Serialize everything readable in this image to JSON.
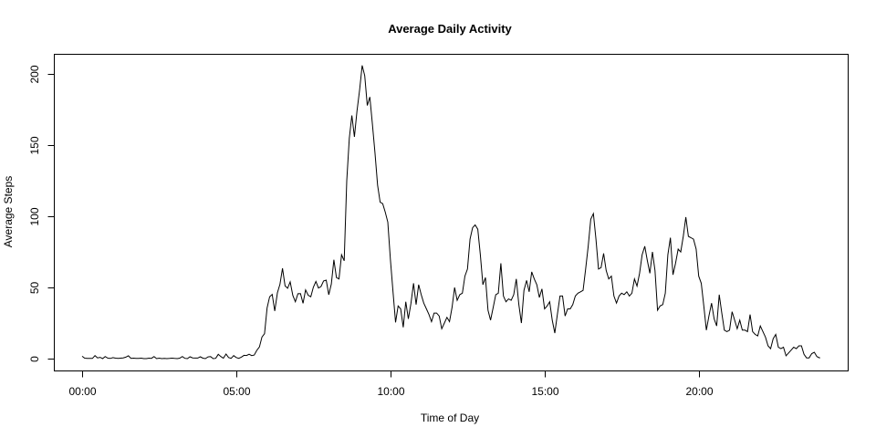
{
  "chart_data": {
    "type": "line",
    "title": "Average Daily Activity",
    "xlabel": "Time of Day",
    "ylabel": "Average Steps",
    "x_unit": "minutes since midnight",
    "xlim": [
      0,
      1435
    ],
    "ylim": [
      0,
      206
    ],
    "x_ticks": [
      {
        "value": 0,
        "label": "00:00"
      },
      {
        "value": 300,
        "label": "05:00"
      },
      {
        "value": 600,
        "label": "10:00"
      },
      {
        "value": 900,
        "label": "15:00"
      },
      {
        "value": 1200,
        "label": "20:00"
      }
    ],
    "y_ticks": [
      {
        "value": 0,
        "label": "0"
      },
      {
        "value": 50,
        "label": "50"
      },
      {
        "value": 100,
        "label": "100"
      },
      {
        "value": 150,
        "label": "150"
      },
      {
        "value": 200,
        "label": "200"
      }
    ],
    "grid": false,
    "series": [
      {
        "color": "#000000",
        "points": [
          [
            0,
            1.7
          ],
          [
            5,
            0.3
          ],
          [
            10,
            0.1
          ],
          [
            15,
            0.2
          ],
          [
            20,
            0.1
          ],
          [
            25,
            2.1
          ],
          [
            30,
            0.5
          ],
          [
            35,
            0.9
          ],
          [
            40,
            0.0
          ],
          [
            45,
            1.5
          ],
          [
            50,
            0.3
          ],
          [
            55,
            0.1
          ],
          [
            60,
            0.7
          ],
          [
            65,
            0.3
          ],
          [
            70,
            0.1
          ],
          [
            75,
            0.3
          ],
          [
            80,
            0.5
          ],
          [
            85,
            1.0
          ],
          [
            90,
            2.0
          ],
          [
            95,
            0.2
          ],
          [
            100,
            0.3
          ],
          [
            105,
            0.1
          ],
          [
            110,
            0.1
          ],
          [
            115,
            0.3
          ],
          [
            120,
            0.0
          ],
          [
            125,
            0.0
          ],
          [
            130,
            0.3
          ],
          [
            135,
            0.2
          ],
          [
            140,
            1.5
          ],
          [
            145,
            0.0
          ],
          [
            150,
            0.3
          ],
          [
            155,
            0.0
          ],
          [
            160,
            0.1
          ],
          [
            165,
            0.0
          ],
          [
            170,
            0.1
          ],
          [
            175,
            0.3
          ],
          [
            180,
            0.1
          ],
          [
            185,
            0.0
          ],
          [
            190,
            0.3
          ],
          [
            195,
            1.5
          ],
          [
            200,
            0.2
          ],
          [
            205,
            0.0
          ],
          [
            210,
            1.3
          ],
          [
            215,
            0.5
          ],
          [
            220,
            0.4
          ],
          [
            225,
            0.4
          ],
          [
            230,
            1.3
          ],
          [
            235,
            0.3
          ],
          [
            240,
            0.0
          ],
          [
            245,
            1.2
          ],
          [
            250,
            1.4
          ],
          [
            255,
            0.0
          ],
          [
            260,
            0.2
          ],
          [
            265,
            3.0
          ],
          [
            270,
            1.5
          ],
          [
            275,
            0.3
          ],
          [
            280,
            3.2
          ],
          [
            285,
            0.8
          ],
          [
            290,
            0.2
          ],
          [
            295,
            2.1
          ],
          [
            300,
            0.8
          ],
          [
            305,
            0.2
          ],
          [
            310,
            1.1
          ],
          [
            315,
            2.3
          ],
          [
            320,
            2.2
          ],
          [
            325,
            3.1
          ],
          [
            330,
            2.1
          ],
          [
            335,
            2.5
          ],
          [
            340,
            5.8
          ],
          [
            345,
            8.2
          ],
          [
            350,
            15.2
          ],
          [
            355,
            17.5
          ],
          [
            360,
            35.6
          ],
          [
            365,
            43.5
          ],
          [
            370,
            45.2
          ],
          [
            375,
            33.5
          ],
          [
            380,
            46.3
          ],
          [
            385,
            52.3
          ],
          [
            390,
            63.5
          ],
          [
            395,
            51.2
          ],
          [
            400,
            49.5
          ],
          [
            405,
            54.0
          ],
          [
            410,
            44.5
          ],
          [
            415,
            40.0
          ],
          [
            420,
            45.6
          ],
          [
            425,
            45.7
          ],
          [
            430,
            38.9
          ],
          [
            435,
            48.3
          ],
          [
            440,
            44.6
          ],
          [
            445,
            43.5
          ],
          [
            450,
            50.2
          ],
          [
            455,
            54.3
          ],
          [
            460,
            49.7
          ],
          [
            465,
            50.7
          ],
          [
            470,
            54.6
          ],
          [
            475,
            55.2
          ],
          [
            480,
            44.9
          ],
          [
            485,
            52.4
          ],
          [
            490,
            69.5
          ],
          [
            495,
            57.0
          ],
          [
            500,
            56.0
          ],
          [
            505,
            73.0
          ],
          [
            510,
            68.8
          ],
          [
            515,
            125.0
          ],
          [
            520,
            155.0
          ],
          [
            525,
            171.0
          ],
          [
            530,
            156.0
          ],
          [
            535,
            174.0
          ],
          [
            540,
            189.0
          ],
          [
            545,
            206.2
          ],
          [
            550,
            199.0
          ],
          [
            555,
            178.0
          ],
          [
            560,
            184.0
          ],
          [
            565,
            165.0
          ],
          [
            570,
            145.0
          ],
          [
            575,
            122.0
          ],
          [
            580,
            110.0
          ],
          [
            585,
            109.0
          ],
          [
            590,
            103.0
          ],
          [
            595,
            96.0
          ],
          [
            600,
            70.0
          ],
          [
            605,
            47.0
          ],
          [
            610,
            25.5
          ],
          [
            615,
            37.0
          ],
          [
            620,
            35.0
          ],
          [
            625,
            22.0
          ],
          [
            630,
            40.0
          ],
          [
            635,
            28.0
          ],
          [
            640,
            39.0
          ],
          [
            645,
            53.0
          ],
          [
            650,
            38.0
          ],
          [
            655,
            52.0
          ],
          [
            660,
            45.0
          ],
          [
            665,
            39.0
          ],
          [
            670,
            35.0
          ],
          [
            675,
            31.0
          ],
          [
            680,
            26.0
          ],
          [
            685,
            32.0
          ],
          [
            690,
            32.0
          ],
          [
            695,
            30.0
          ],
          [
            700,
            21.0
          ],
          [
            705,
            25.0
          ],
          [
            710,
            29.0
          ],
          [
            715,
            26.0
          ],
          [
            720,
            36.0
          ],
          [
            725,
            50.0
          ],
          [
            730,
            41.0
          ],
          [
            735,
            45.0
          ],
          [
            740,
            46.0
          ],
          [
            745,
            58.0
          ],
          [
            750,
            63.0
          ],
          [
            755,
            84.0
          ],
          [
            760,
            92.0
          ],
          [
            765,
            94.0
          ],
          [
            770,
            91.0
          ],
          [
            775,
            73.0
          ],
          [
            780,
            52.0
          ],
          [
            785,
            57.0
          ],
          [
            790,
            34.0
          ],
          [
            795,
            27.0
          ],
          [
            800,
            36.0
          ],
          [
            805,
            45.0
          ],
          [
            810,
            46.0
          ],
          [
            815,
            67.0
          ],
          [
            820,
            44.0
          ],
          [
            825,
            40.0
          ],
          [
            830,
            42.0
          ],
          [
            835,
            41.0
          ],
          [
            840,
            45.0
          ],
          [
            845,
            56.0
          ],
          [
            850,
            38.0
          ],
          [
            855,
            25.0
          ],
          [
            860,
            48.0
          ],
          [
            865,
            55.0
          ],
          [
            870,
            47.0
          ],
          [
            875,
            61.0
          ],
          [
            880,
            56.0
          ],
          [
            885,
            52.0
          ],
          [
            890,
            43.0
          ],
          [
            895,
            49.0
          ],
          [
            900,
            35.0
          ],
          [
            905,
            37.0
          ],
          [
            910,
            40.0
          ],
          [
            915,
            27.0
          ],
          [
            920,
            18.0
          ],
          [
            925,
            31.0
          ],
          [
            930,
            44.0
          ],
          [
            935,
            44.0
          ],
          [
            940,
            30.0
          ],
          [
            945,
            35.0
          ],
          [
            950,
            35.0
          ],
          [
            955,
            38.0
          ],
          [
            960,
            44.0
          ],
          [
            965,
            46.0
          ],
          [
            970,
            47.0
          ],
          [
            975,
            48.0
          ],
          [
            980,
            63.0
          ],
          [
            985,
            79.0
          ],
          [
            990,
            98.0
          ],
          [
            995,
            102.0
          ],
          [
            1000,
            84.0
          ],
          [
            1005,
            63.0
          ],
          [
            1010,
            64.0
          ],
          [
            1015,
            74.0
          ],
          [
            1020,
            62.0
          ],
          [
            1025,
            56.0
          ],
          [
            1030,
            58.0
          ],
          [
            1035,
            44.0
          ],
          [
            1040,
            39.0
          ],
          [
            1045,
            44.0
          ],
          [
            1050,
            46.0
          ],
          [
            1055,
            45.0
          ],
          [
            1060,
            47.0
          ],
          [
            1065,
            44.0
          ],
          [
            1070,
            46.0
          ],
          [
            1075,
            56.0
          ],
          [
            1080,
            51.0
          ],
          [
            1085,
            60.0
          ],
          [
            1090,
            73.0
          ],
          [
            1095,
            79.0
          ],
          [
            1100,
            69.0
          ],
          [
            1105,
            60.0
          ],
          [
            1110,
            75.0
          ],
          [
            1115,
            62.0
          ],
          [
            1120,
            34.0
          ],
          [
            1125,
            37.0
          ],
          [
            1130,
            38.0
          ],
          [
            1135,
            46.0
          ],
          [
            1140,
            73.0
          ],
          [
            1145,
            85.0
          ],
          [
            1150,
            59.0
          ],
          [
            1155,
            67.0
          ],
          [
            1160,
            77.0
          ],
          [
            1165,
            75.0
          ],
          [
            1170,
            86.0
          ],
          [
            1175,
            99.5
          ],
          [
            1180,
            86.0
          ],
          [
            1185,
            85.0
          ],
          [
            1190,
            84.0
          ],
          [
            1195,
            77.0
          ],
          [
            1200,
            58.0
          ],
          [
            1205,
            53.0
          ],
          [
            1210,
            37.0
          ],
          [
            1215,
            20.0
          ],
          [
            1220,
            30.0
          ],
          [
            1225,
            39.0
          ],
          [
            1230,
            28.0
          ],
          [
            1235,
            23.0
          ],
          [
            1240,
            45.0
          ],
          [
            1245,
            32.0
          ],
          [
            1250,
            20.0
          ],
          [
            1255,
            19.0
          ],
          [
            1260,
            20.0
          ],
          [
            1265,
            33.0
          ],
          [
            1270,
            27.0
          ],
          [
            1275,
            21.0
          ],
          [
            1280,
            27.0
          ],
          [
            1285,
            20.0
          ],
          [
            1290,
            20.0
          ],
          [
            1295,
            19.0
          ],
          [
            1300,
            31.0
          ],
          [
            1305,
            19.0
          ],
          [
            1310,
            17.0
          ],
          [
            1315,
            16.0
          ],
          [
            1320,
            23.0
          ],
          [
            1325,
            19.0
          ],
          [
            1330,
            15.0
          ],
          [
            1335,
            9.0
          ],
          [
            1340,
            7.0
          ],
          [
            1345,
            14.0
          ],
          [
            1350,
            17.0
          ],
          [
            1355,
            8.0
          ],
          [
            1360,
            7.0
          ],
          [
            1365,
            8.0
          ],
          [
            1370,
            2.0
          ],
          [
            1375,
            4.0
          ],
          [
            1380,
            6.0
          ],
          [
            1385,
            8.0
          ],
          [
            1390,
            7.0
          ],
          [
            1395,
            9.0
          ],
          [
            1400,
            9.0
          ],
          [
            1405,
            3.0
          ],
          [
            1410,
            0.5
          ],
          [
            1415,
            0.5
          ],
          [
            1420,
            3.5
          ],
          [
            1425,
            4.5
          ],
          [
            1430,
            1.5
          ],
          [
            1435,
            0.5
          ],
          [
            1440,
            1.5
          ],
          [
            1445,
            1.2
          ],
          [
            1450,
            0.5
          ],
          [
            1455,
            1.0
          ],
          [
            1460,
            4.0
          ],
          [
            1465,
            4.5
          ],
          [
            1470,
            2.0
          ],
          [
            1475,
            0.0
          ],
          [
            1480,
            0.5
          ],
          [
            1435,
            1.0
          ]
        ]
      }
    ]
  }
}
